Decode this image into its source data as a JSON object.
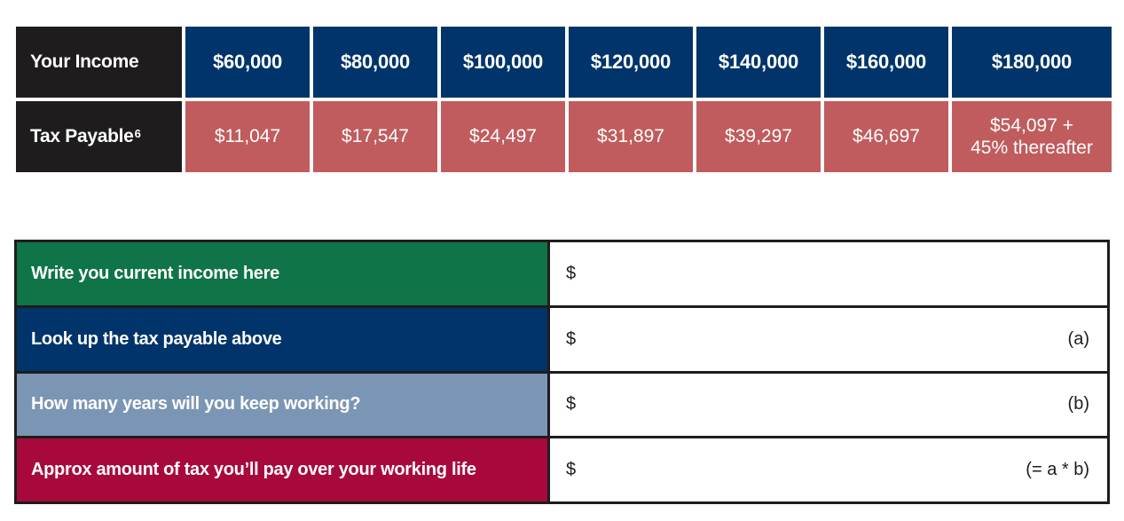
{
  "tax_table": {
    "income_label": "Your Income",
    "tax_label": "Tax Payable",
    "tax_label_footnote": "6",
    "brackets": [
      {
        "income": "$60,000",
        "tax": "$11,047"
      },
      {
        "income": "$80,000",
        "tax": "$17,547"
      },
      {
        "income": "$100,000",
        "tax": "$24,497"
      },
      {
        "income": "$120,000",
        "tax": "$31,897"
      },
      {
        "income": "$140,000",
        "tax": "$39,297"
      },
      {
        "income": "$160,000",
        "tax": "$46,697"
      },
      {
        "income": "$180,000",
        "tax_line1": "$54,097 +",
        "tax_line2": "45% thereafter"
      }
    ]
  },
  "worksheet": {
    "rows": [
      {
        "label": "Write you current income here",
        "currency": "$",
        "suffix": "",
        "color": "#0f7447"
      },
      {
        "label": "Look up the tax payable above",
        "currency": "$",
        "suffix": "(a)",
        "color": "#00346a"
      },
      {
        "label": "How many years will you keep working?",
        "currency": "$",
        "suffix": "(b)",
        "color": "#7b96b4"
      },
      {
        "label": "Approx amount of tax you’ll pay over your working life",
        "currency": "$",
        "suffix": "(= a * b)",
        "color": "#a8093b"
      }
    ]
  },
  "colors": {
    "label_dark": "#1f1c1d",
    "income_navy": "#00346a",
    "tax_red": "#c05c5d"
  }
}
